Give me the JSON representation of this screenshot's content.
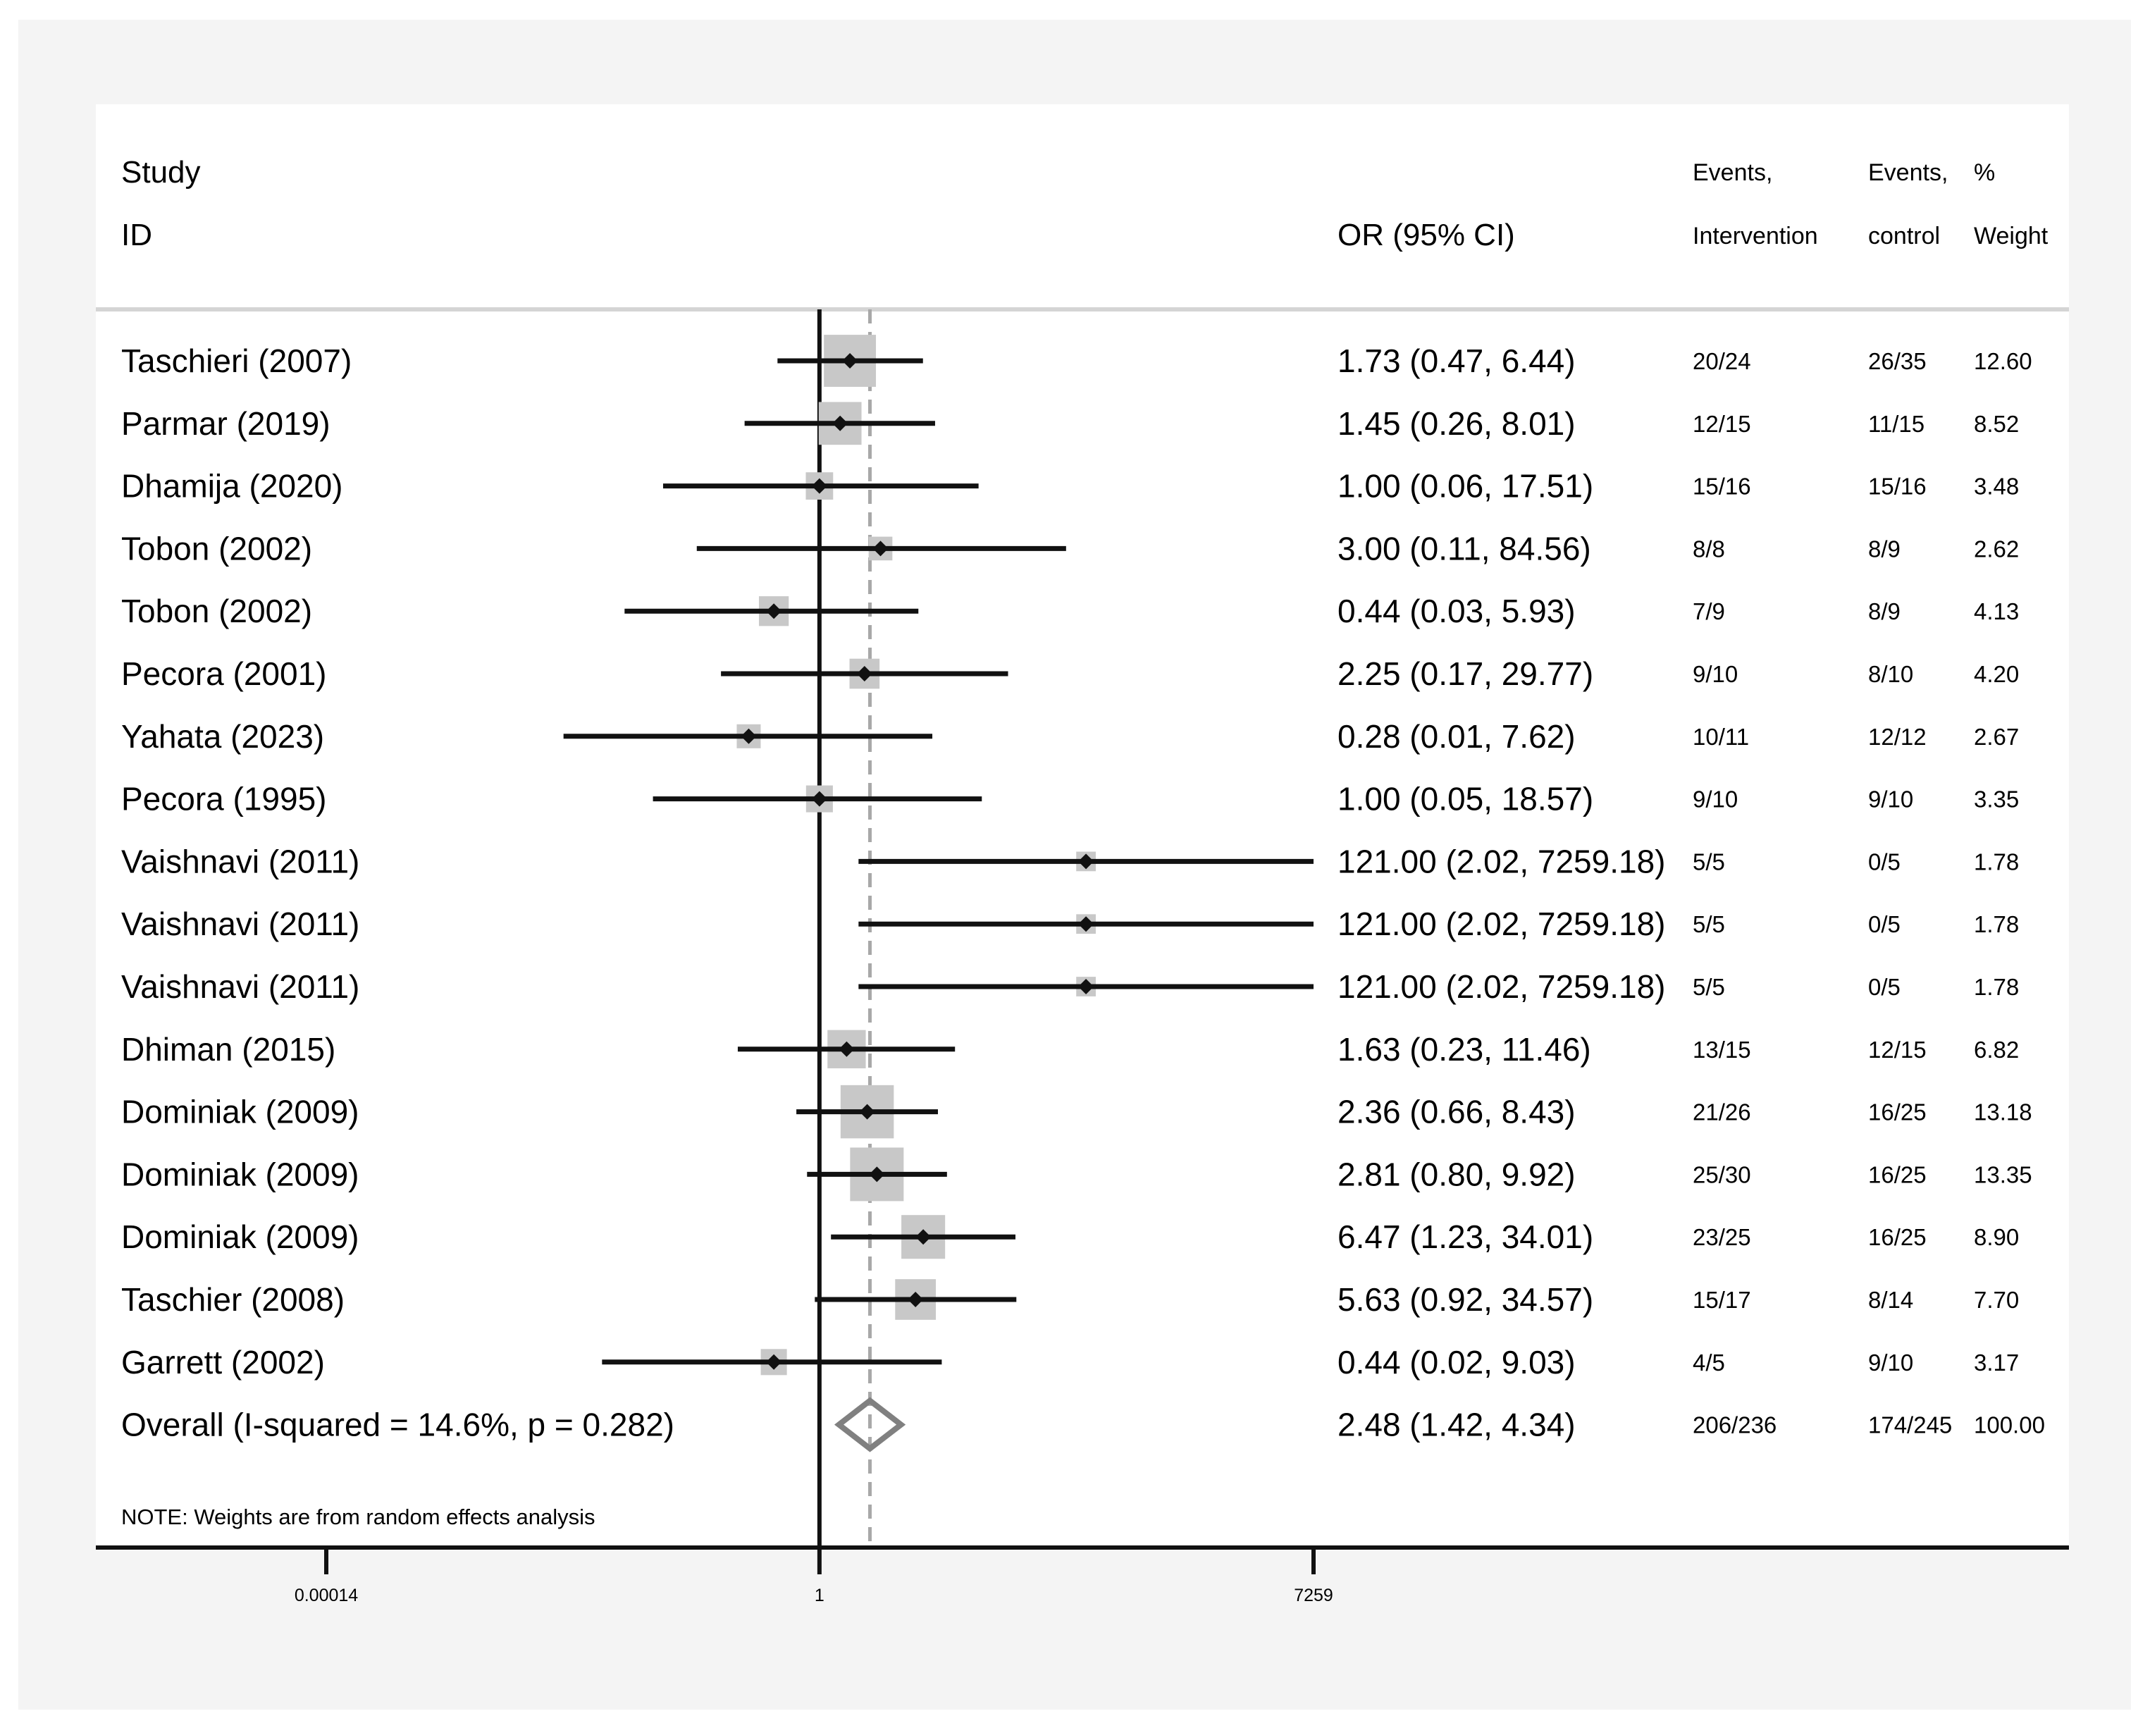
{
  "chart_data": {
    "type": "forest",
    "measure": "OR",
    "scale": "log",
    "xlim": [
      0.00014,
      7259
    ],
    "x_ticks": [
      "0.00014",
      "1",
      "7259"
    ],
    "reference_line": 1,
    "pooled_line": 2.48,
    "headers": {
      "study1": "Study",
      "study2": "ID",
      "ci": "OR (95% CI)",
      "ev_int1": "Events,",
      "ev_int2": "Intervention",
      "ev_ctl1": "Events,",
      "ev_ctl2": "control",
      "weight1": "%",
      "weight2": "Weight"
    },
    "studies": [
      {
        "study": "Taschieri (2007)",
        "or": 1.73,
        "lo": 0.47,
        "hi": 6.44,
        "ci_text": "1.73 (0.47, 6.44)",
        "ev_int": "20/24",
        "ev_ctl": "26/35",
        "weight": 12.6,
        "weight_text": "12.60"
      },
      {
        "study": "Parmar (2019)",
        "or": 1.45,
        "lo": 0.26,
        "hi": 8.01,
        "ci_text": "1.45 (0.26, 8.01)",
        "ev_int": "12/15",
        "ev_ctl": "11/15",
        "weight": 8.52,
        "weight_text": "8.52"
      },
      {
        "study": "Dhamija (2020)",
        "or": 1.0,
        "lo": 0.06,
        "hi": 17.51,
        "ci_text": "1.00 (0.06, 17.51)",
        "ev_int": "15/16",
        "ev_ctl": "15/16",
        "weight": 3.48,
        "weight_text": "3.48"
      },
      {
        "study": "Tobon (2002)",
        "or": 3.0,
        "lo": 0.11,
        "hi": 84.56,
        "ci_text": "3.00 (0.11, 84.56)",
        "ev_int": "8/8",
        "ev_ctl": "8/9",
        "weight": 2.62,
        "weight_text": "2.62"
      },
      {
        "study": "Tobon (2002)",
        "or": 0.44,
        "lo": 0.03,
        "hi": 5.93,
        "ci_text": "0.44 (0.03, 5.93)",
        "ev_int": "7/9",
        "ev_ctl": "8/9",
        "weight": 4.13,
        "weight_text": "4.13"
      },
      {
        "study": "Pecora (2001)",
        "or": 2.25,
        "lo": 0.17,
        "hi": 29.77,
        "ci_text": "2.25 (0.17, 29.77)",
        "ev_int": "9/10",
        "ev_ctl": "8/10",
        "weight": 4.2,
        "weight_text": "4.20"
      },
      {
        "study": "Yahata (2023)",
        "or": 0.28,
        "lo": 0.01,
        "hi": 7.62,
        "ci_text": "0.28 (0.01, 7.62)",
        "ev_int": "10/11",
        "ev_ctl": "12/12",
        "weight": 2.67,
        "weight_text": "2.67"
      },
      {
        "study": "Pecora (1995)",
        "or": 1.0,
        "lo": 0.05,
        "hi": 18.57,
        "ci_text": "1.00 (0.05, 18.57)",
        "ev_int": "9/10",
        "ev_ctl": "9/10",
        "weight": 3.35,
        "weight_text": "3.35"
      },
      {
        "study": "Vaishnavi (2011)",
        "or": 121.0,
        "lo": 2.02,
        "hi": 7259.18,
        "ci_text": "121.00 (2.02, 7259.18)",
        "ev_int": "5/5",
        "ev_ctl": "0/5",
        "weight": 1.78,
        "weight_text": "1.78"
      },
      {
        "study": "Vaishnavi (2011)",
        "or": 121.0,
        "lo": 2.02,
        "hi": 7259.18,
        "ci_text": "121.00 (2.02, 7259.18)",
        "ev_int": "5/5",
        "ev_ctl": "0/5",
        "weight": 1.78,
        "weight_text": "1.78"
      },
      {
        "study": "Vaishnavi (2011)",
        "or": 121.0,
        "lo": 2.02,
        "hi": 7259.18,
        "ci_text": "121.00 (2.02, 7259.18)",
        "ev_int": "5/5",
        "ev_ctl": "0/5",
        "weight": 1.78,
        "weight_text": "1.78"
      },
      {
        "study": "Dhiman (2015)",
        "or": 1.63,
        "lo": 0.23,
        "hi": 11.46,
        "ci_text": "1.63 (0.23, 11.46)",
        "ev_int": "13/15",
        "ev_ctl": "12/15",
        "weight": 6.82,
        "weight_text": "6.82"
      },
      {
        "study": "Dominiak (2009)",
        "or": 2.36,
        "lo": 0.66,
        "hi": 8.43,
        "ci_text": "2.36 (0.66, 8.43)",
        "ev_int": "21/26",
        "ev_ctl": "16/25",
        "weight": 13.18,
        "weight_text": "13.18"
      },
      {
        "study": "Dominiak (2009)",
        "or": 2.81,
        "lo": 0.8,
        "hi": 9.92,
        "ci_text": "2.81 (0.80, 9.92)",
        "ev_int": "25/30",
        "ev_ctl": "16/25",
        "weight": 13.35,
        "weight_text": "13.35"
      },
      {
        "study": "Dominiak (2009)",
        "or": 6.47,
        "lo": 1.23,
        "hi": 34.01,
        "ci_text": "6.47 (1.23, 34.01)",
        "ev_int": "23/25",
        "ev_ctl": "16/25",
        "weight": 8.9,
        "weight_text": "8.90"
      },
      {
        "study": "Taschier (2008)",
        "or": 5.63,
        "lo": 0.92,
        "hi": 34.57,
        "ci_text": "5.63 (0.92, 34.57)",
        "ev_int": "15/17",
        "ev_ctl": "8/14",
        "weight": 7.7,
        "weight_text": "7.70"
      },
      {
        "study": "Garrett (2002)",
        "or": 0.44,
        "lo": 0.02,
        "hi": 9.03,
        "ci_text": "0.44 (0.02, 9.03)",
        "ev_int": "4/5",
        "ev_ctl": "9/10",
        "weight": 3.17,
        "weight_text": "3.17"
      }
    ],
    "overall": {
      "label": "Overall  (I-squared = 14.6%, p = 0.282)",
      "or": 2.48,
      "lo": 1.42,
      "hi": 4.34,
      "ci_text": "2.48 (1.42, 4.34)",
      "ev_int": "206/236",
      "ev_ctl": "174/245",
      "weight_text": "100.00"
    },
    "note": "NOTE: Weights are from random effects analysis"
  },
  "colors": {
    "background": "#f4f4f4",
    "panel": "#ffffff",
    "line": "#111111",
    "box": "#c8c8c8",
    "diamond": "#808080",
    "pooled_line": "#a8a8a8",
    "divider": "#d4d4d4"
  }
}
